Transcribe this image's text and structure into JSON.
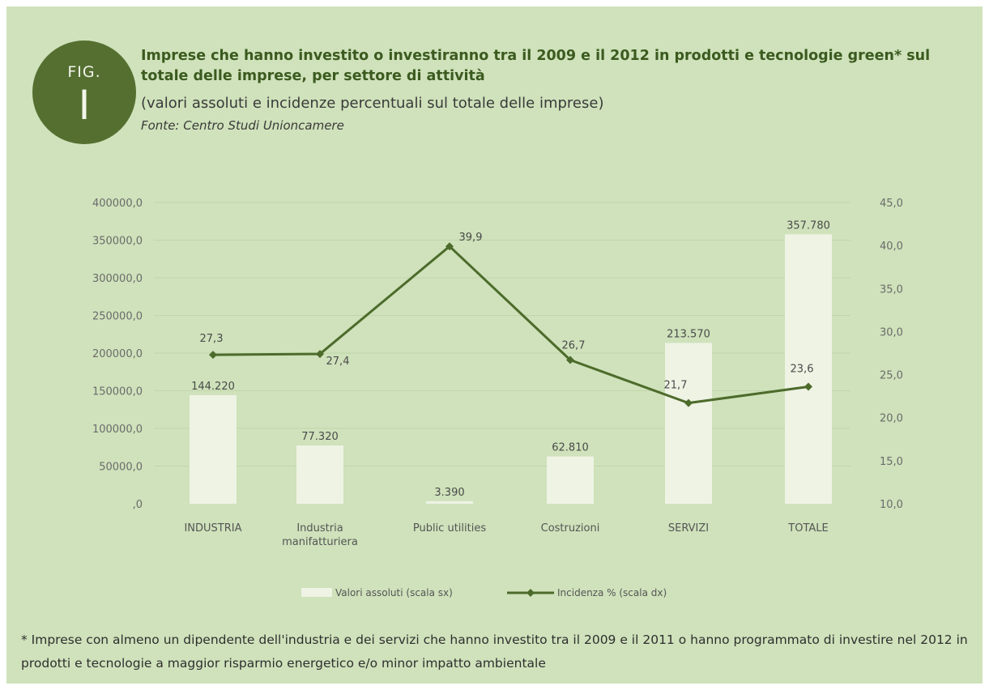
{
  "header": {
    "badge_fig": "FIG.",
    "badge_num": "I",
    "title": "Imprese che hanno investito o investiranno tra il 2009 e il 2012 in prodotti e tecnologie green* sul totale delle imprese, per settore di attività",
    "subtitle": "(valori assoluti e incidenze percentuali sul totale delle imprese)",
    "source": "Fonte: Centro Studi Unioncamere"
  },
  "footnote": "* Imprese con almeno un dipendente dell'industria e dei servizi che hanno investito tra il 2009 e il 2011 o hanno programmato di investire nel 2012 in prodotti e tecnologie a maggior risparmio energetico e/o minor impatto ambientale",
  "colors": {
    "background": "#cfe2bb",
    "bar": "#eef3e4",
    "line": "#4d6b2b",
    "badge": "#556f31",
    "grid": "#c2d6ad"
  },
  "chart_data": {
    "type": "bar+line",
    "categories": [
      "INDUSTRIA",
      "Industria manifatturiera",
      "Public utilities",
      "Costruzioni",
      "SERVIZI",
      "TOTALE"
    ],
    "category_lines": [
      [
        "INDUSTRIA"
      ],
      [
        "Industria",
        "manifatturiera"
      ],
      [
        "Public utilities"
      ],
      [
        "Costruzioni"
      ],
      [
        "SERVIZI"
      ],
      [
        "TOTALE"
      ]
    ],
    "series": [
      {
        "name": "Valori assoluti (scala sx)",
        "type": "bar",
        "axis": "left",
        "values": [
          144220,
          77320,
          3390,
          62810,
          213570,
          357780
        ],
        "labels": [
          "144.220",
          "77.320",
          "3.390",
          "62.810",
          "213.570",
          "357.780"
        ]
      },
      {
        "name": "Incidenza % (scala dx)",
        "type": "line",
        "axis": "right",
        "values": [
          27.3,
          27.4,
          39.9,
          26.7,
          21.7,
          23.6
        ],
        "labels": [
          "27,3",
          "27,4",
          "39,9",
          "26,7",
          "21,7",
          "23,6"
        ]
      }
    ],
    "y_left": {
      "range": [
        0,
        400000
      ],
      "ticks": [
        0,
        50000,
        100000,
        150000,
        200000,
        250000,
        300000,
        350000,
        400000
      ],
      "tick_labels": [
        ",0",
        "50000,0",
        "100000,0",
        "150000,0",
        "200000,0",
        "250000,0",
        "300000,0",
        "350000,0",
        "400000,0"
      ]
    },
    "y_right": {
      "range": [
        10,
        45
      ],
      "ticks": [
        10,
        15,
        20,
        25,
        30,
        35,
        40,
        45
      ],
      "tick_labels": [
        "10,0",
        "15,0",
        "20,0",
        "25,0",
        "30,0",
        "35,0",
        "40,0",
        "45,0"
      ]
    },
    "grid": true,
    "legend_position": "bottom"
  }
}
